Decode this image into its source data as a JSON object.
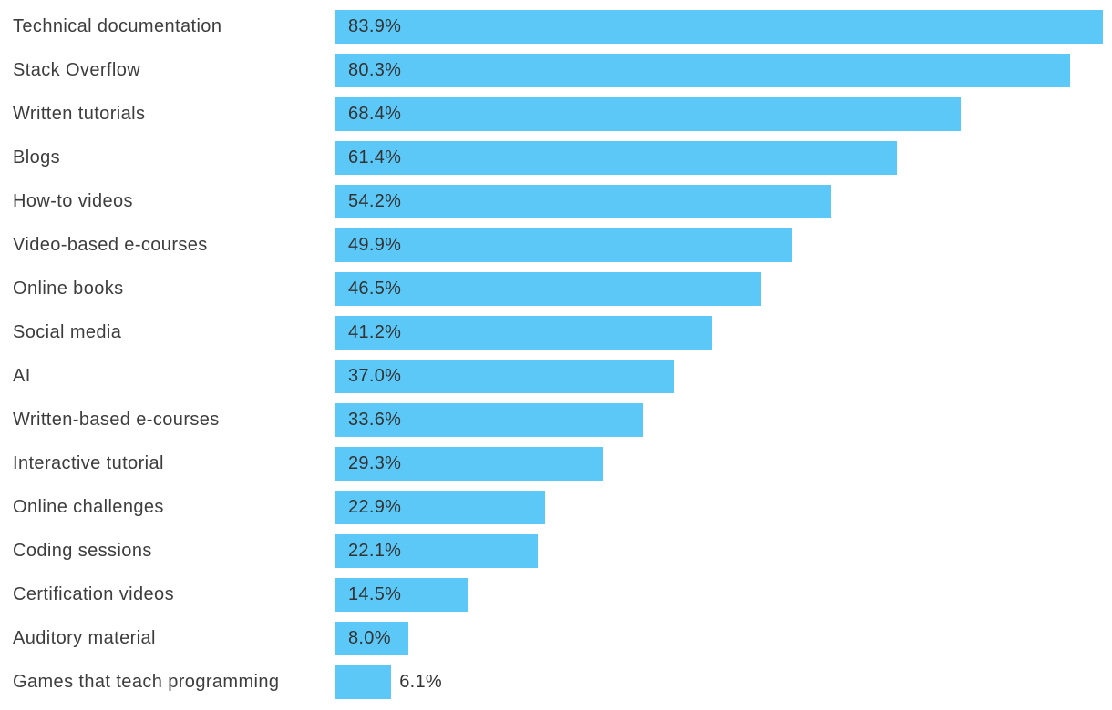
{
  "chart_style": {
    "background_color": "#ffffff",
    "bar_color": "#5cc8f7",
    "label_color": "#3d3d3d",
    "value_color": "#333333"
  },
  "chart_data": {
    "type": "bar",
    "orientation": "horizontal",
    "title": "",
    "xlabel": "",
    "ylabel": "",
    "xlim": [
      0,
      83.9
    ],
    "grid": false,
    "legend": null,
    "categories": [
      "Technical documentation",
      "Stack Overflow",
      "Written tutorials",
      "Blogs",
      "How-to videos",
      "Video-based e-courses",
      "Online books",
      "Social media",
      "AI",
      "Written-based e-courses",
      "Interactive tutorial",
      "Online challenges",
      "Coding sessions",
      "Certification videos",
      "Auditory material",
      "Games that teach programming"
    ],
    "values": [
      83.9,
      80.3,
      68.4,
      61.4,
      54.2,
      49.9,
      46.5,
      41.2,
      37.0,
      33.6,
      29.3,
      22.9,
      22.1,
      14.5,
      8.0,
      6.1
    ],
    "value_labels": [
      "83.9%",
      "80.3%",
      "68.4%",
      "61.4%",
      "54.2%",
      "49.9%",
      "46.5%",
      "41.2%",
      "37.0%",
      "33.6%",
      "29.3%",
      "22.9%",
      "22.1%",
      "14.5%",
      "8.0%",
      "6.1%"
    ]
  }
}
